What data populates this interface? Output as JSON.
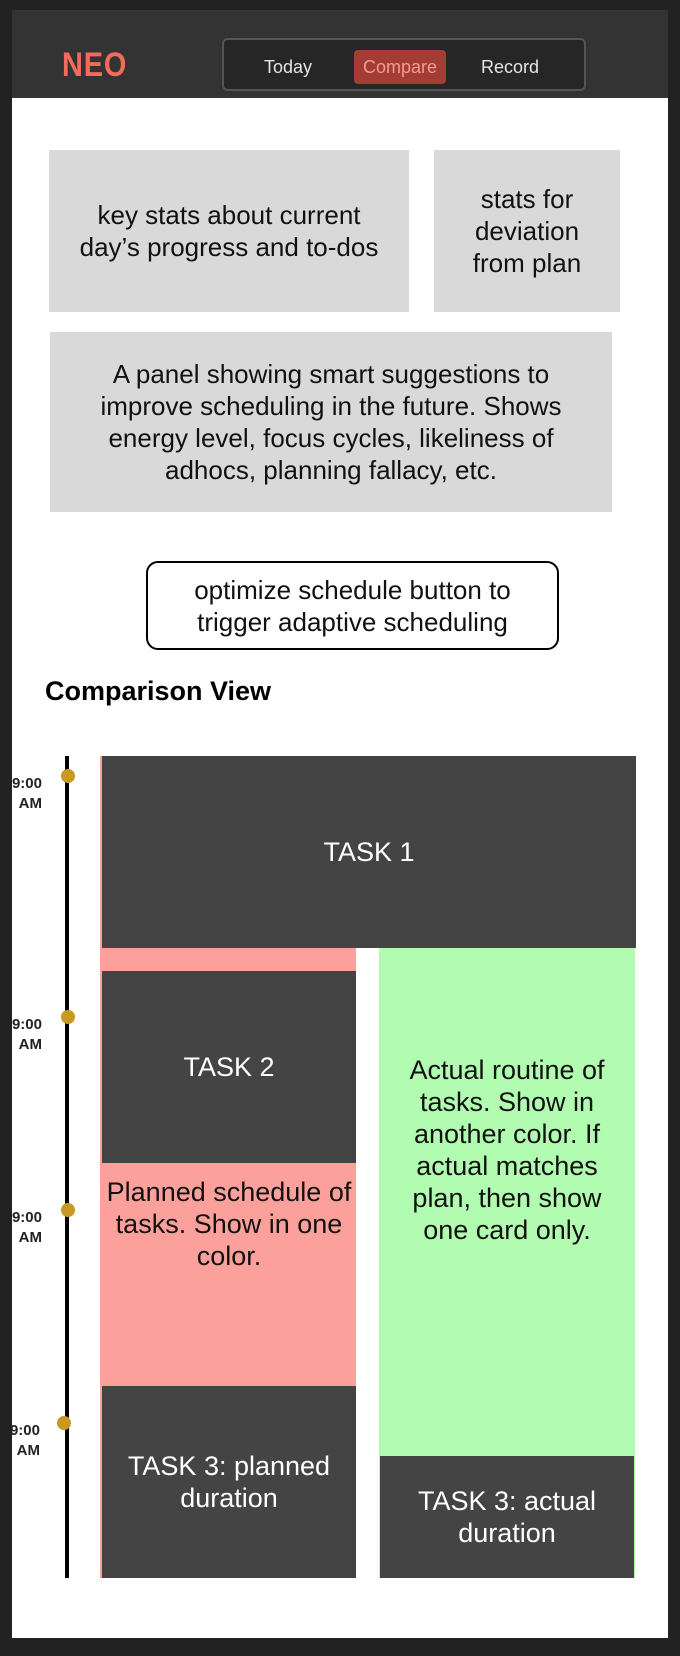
{
  "app": {
    "logo": "NEO",
    "tabs": [
      {
        "label": "Today",
        "active": false
      },
      {
        "label": "Compare",
        "active": true
      },
      {
        "label": "Record",
        "active": false
      }
    ]
  },
  "panels": {
    "key_stats": "key stats about current day’s progress and to-dos",
    "deviation_stats": "stats for deviation from plan",
    "suggestions": "A panel showing smart suggestions to improve scheduling in the future. Shows energy level, focus cycles, likeliness of adhocs, planning fallacy, etc."
  },
  "optimize_button": {
    "label": "optimize schedule button to trigger adaptive scheduling"
  },
  "comparison": {
    "title": "Comparison View",
    "time_labels": [
      "9:00 AM",
      "9:00 AM",
      "9:00 AM",
      "9:00 AM"
    ],
    "planned": {
      "task1": "TASK 1",
      "task2": "TASK 2",
      "note": "Planned schedule of tasks. Show in one color.",
      "task3": "TASK 3: planned duration"
    },
    "actual": {
      "note": "Actual routine of tasks. Show in another color. If actual matches plan, then show one card only.",
      "task3": "TASK 3: actual duration"
    }
  },
  "colors": {
    "brand": "#f26b5b",
    "active_tab_bg": "#a33c34",
    "planned": "#fba09b",
    "actual": "#b1fcb1",
    "task_card": "#444444",
    "timeline_dot": "#c99a22"
  }
}
